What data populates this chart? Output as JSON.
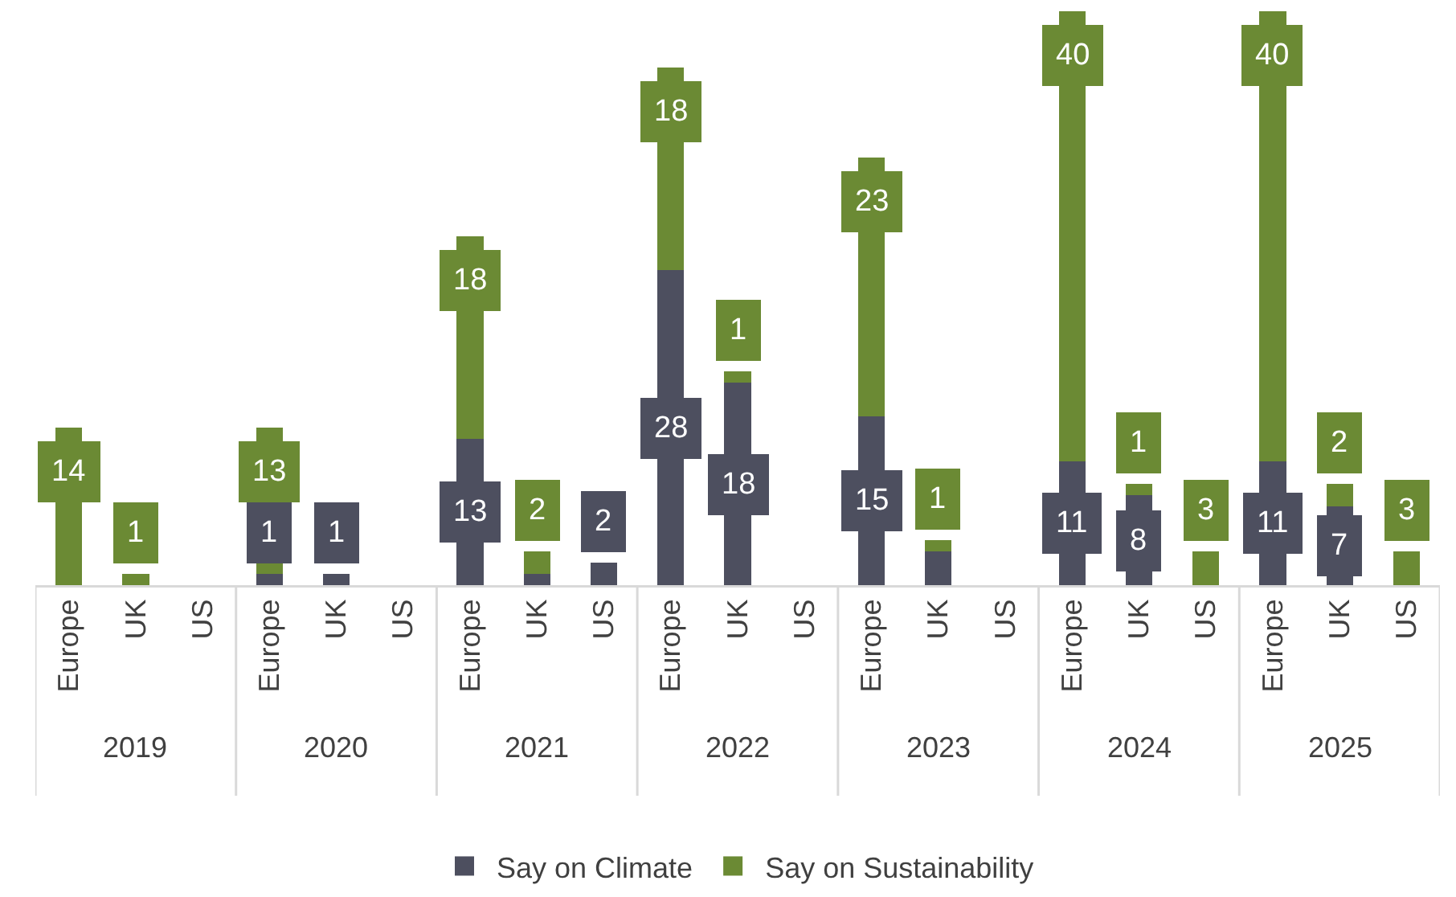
{
  "chart_data": {
    "type": "bar",
    "stacked": true,
    "categories": [
      "Europe",
      "UK",
      "US",
      "Europe",
      "UK",
      "US",
      "Europe",
      "UK",
      "US",
      "Europe",
      "UK",
      "US",
      "Europe",
      "UK",
      "US",
      "Europe",
      "UK",
      "US",
      "Europe",
      "UK",
      "US"
    ],
    "annotations": [
      "2019",
      "2020",
      "2021",
      "2022",
      "2023",
      "2024",
      "2025"
    ],
    "series": [
      {
        "name": "Say on Climate",
        "color": "#4d4f5f",
        "values": [
          null,
          null,
          null,
          1,
          1,
          null,
          13,
          1,
          2,
          28,
          18,
          null,
          15,
          3,
          null,
          11,
          8,
          null,
          11,
          7,
          null
        ],
        "value_labels": [
          null,
          null,
          null,
          "1",
          "1",
          null,
          "13",
          null,
          "2",
          "28",
          "18",
          null,
          "15",
          null,
          null,
          "11",
          "8",
          null,
          "11",
          "7",
          null
        ]
      },
      {
        "name": "Say on Sustainability",
        "color": "#6b8a34",
        "values": [
          14,
          1,
          null,
          13,
          null,
          null,
          18,
          2,
          null,
          18,
          1,
          null,
          23,
          1,
          null,
          40,
          1,
          3,
          40,
          2,
          3
        ],
        "value_labels": [
          "14",
          "1",
          null,
          "13",
          null,
          null,
          "18",
          "2",
          null,
          "18",
          "1",
          null,
          "23",
          "1",
          null,
          "40",
          "1",
          "3",
          "40",
          "2",
          "3"
        ]
      }
    ],
    "ylim": [
      0,
      52
    ],
    "tick_labels": "x",
    "legend": "bottom",
    "grid": false
  }
}
